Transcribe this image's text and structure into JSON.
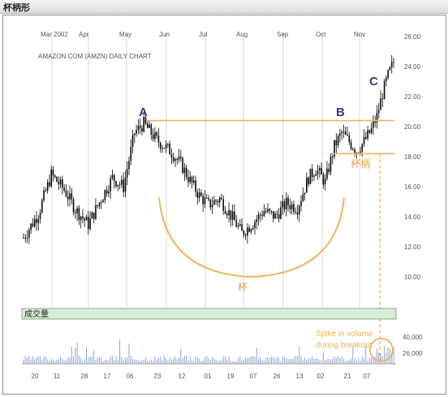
{
  "page_title": "杯柄形",
  "chart_data": {
    "type": "candlestick",
    "title": "AMAZON.COM (AMZN) DAILY CHART",
    "month_labels": [
      "Mar 2002",
      "Apr",
      "May",
      "Jun",
      "Jul",
      "Aug",
      "Sep",
      "Oct",
      "Nov"
    ],
    "x_tick_labels": [
      "20",
      "11",
      "28",
      "17",
      "06",
      "23",
      "12",
      "01",
      "19",
      "07",
      "26",
      "13",
      "02",
      "21",
      "07"
    ],
    "y_ticks": [
      10,
      12,
      14,
      16,
      18,
      20,
      22,
      24,
      26
    ],
    "y_tick_labels": [
      "10.00",
      "12.00",
      "14.00",
      "16.00",
      "18.00",
      "20.00",
      "22.00",
      "24.00",
      "26.00"
    ],
    "ylim": [
      8.5,
      26.5
    ],
    "resistance_level": 20.4,
    "handle_level": 18.2,
    "annotations": {
      "a": "A",
      "b": "B",
      "c": "C",
      "cup": "杯",
      "handle": "杯柄",
      "spike_line1": "Spike in volume",
      "spike_line2": "during breakout"
    },
    "volume": {
      "label": "成交量",
      "ticks": [
        40000,
        26000
      ],
      "tick_labels": [
        "40,000",
        "26,000"
      ]
    },
    "price_path": [
      [
        0,
        12.6
      ],
      [
        8,
        14.2
      ],
      [
        15,
        16.8
      ],
      [
        22,
        15.8
      ],
      [
        28,
        14.5
      ],
      [
        35,
        13.5
      ],
      [
        42,
        15.2
      ],
      [
        48,
        16.6
      ],
      [
        54,
        16.0
      ],
      [
        60,
        19.6
      ],
      [
        65,
        20.2
      ],
      [
        72,
        19.1
      ],
      [
        80,
        18.3
      ],
      [
        85,
        17.5
      ],
      [
        90,
        16.4
      ],
      [
        95,
        15.4
      ],
      [
        100,
        14.8
      ],
      [
        106,
        15.2
      ],
      [
        112,
        14.1
      ],
      [
        118,
        12.9
      ],
      [
        124,
        13.6
      ],
      [
        130,
        14.4
      ],
      [
        136,
        14.0
      ],
      [
        142,
        14.9
      ],
      [
        148,
        14.6
      ],
      [
        154,
        16.6
      ],
      [
        158,
        17.2
      ],
      [
        163,
        16.3
      ],
      [
        168,
        18.7
      ],
      [
        172,
        19.6
      ],
      [
        176,
        19.0
      ],
      [
        180,
        18.4
      ],
      [
        184,
        19.0
      ],
      [
        188,
        19.8
      ],
      [
        191,
        20.7
      ],
      [
        194,
        22.2
      ],
      [
        197,
        23.4
      ],
      [
        200,
        24.3
      ]
    ]
  },
  "colors": {
    "candle": "#0a0a0a",
    "volume": "#8fa6d4",
    "highlight": "#f2b35d",
    "grid": "#bcbcbc",
    "label_text": "#2d3d78",
    "handle_text": "#e8a04a",
    "axis_text": "#555555",
    "band": "#d8ecd8"
  }
}
